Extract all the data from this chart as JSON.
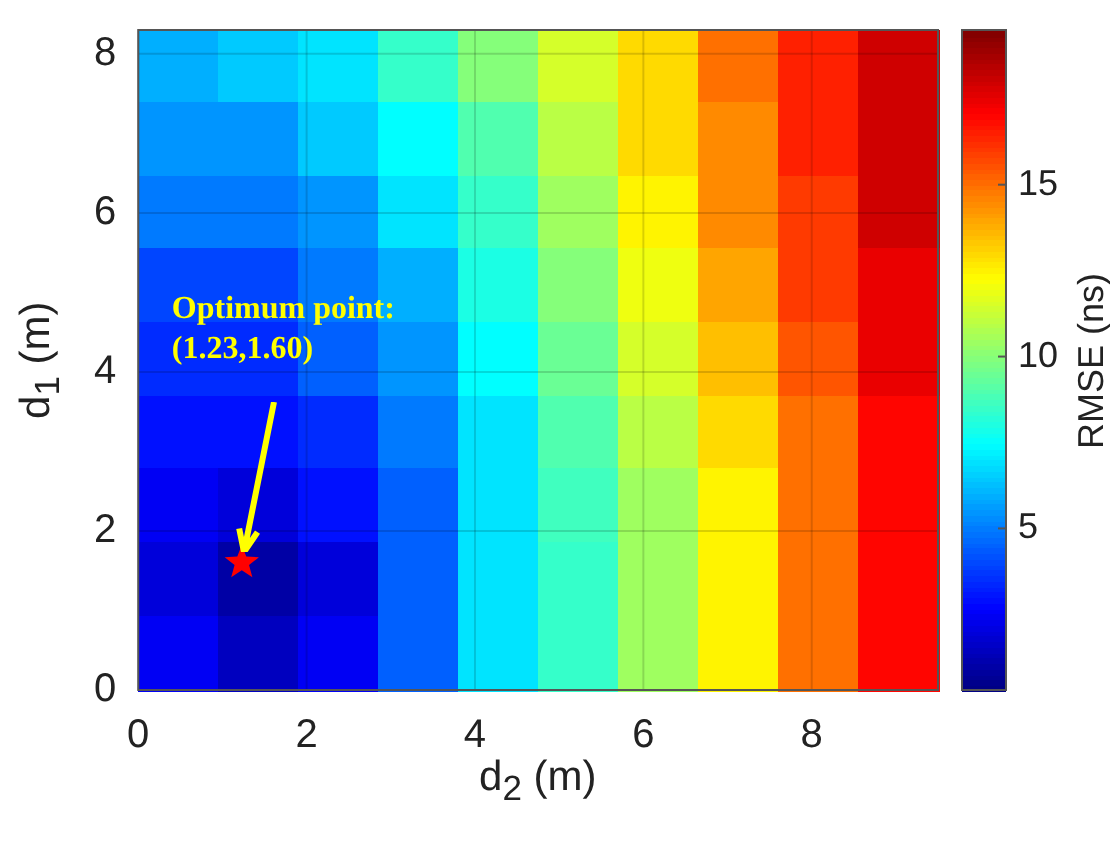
{
  "chart_data": {
    "type": "heatmap",
    "xlabel": "d$_{2}$ (m)",
    "ylabel": "d$_{1}$ (m)",
    "clabel": "RMSE (ns)",
    "x": [
      0.475,
      1.425,
      2.375,
      3.325,
      4.275,
      5.225,
      6.175,
      7.125,
      8.075,
      9.025
    ],
    "y": [
      7.84,
      6.92,
      6.0,
      5.07,
      4.15,
      3.23,
      2.31,
      1.38,
      0.46
    ],
    "cells": [
      [
        6,
        6.5,
        7,
        8.5,
        10,
        11.5,
        13,
        15,
        16.5,
        18
      ],
      [
        5.5,
        5.5,
        6.5,
        7.5,
        9,
        11,
        13,
        14.5,
        16.5,
        18
      ],
      [
        5,
        5,
        5.5,
        7,
        8.5,
        10.5,
        12.5,
        14.5,
        16,
        18
      ],
      [
        4,
        4,
        5,
        6,
        8,
        10,
        12,
        14,
        16,
        17.5
      ],
      [
        3.5,
        3.5,
        4.5,
        5.5,
        7.5,
        9.5,
        11.5,
        13.5,
        15.5,
        17.5
      ],
      [
        3,
        3,
        3.5,
        5,
        7,
        9,
        11,
        13,
        15,
        17
      ],
      [
        2.5,
        2,
        3,
        4.5,
        7,
        8.7,
        10.5,
        12.5,
        15,
        17
      ],
      [
        2,
        1,
        2,
        4.5,
        7,
        8.5,
        10.5,
        12.5,
        15,
        17
      ],
      [
        2.5,
        1.5,
        2.5,
        4.5,
        7,
        8.5,
        10.5,
        12.5,
        15,
        17
      ]
    ],
    "xlim": [
      0,
      9.5
    ],
    "ylim": [
      0,
      8.3
    ],
    "xticks": [
      0,
      2,
      4,
      6,
      8
    ],
    "yticks": [
      0,
      2,
      4,
      6,
      8
    ],
    "clim": [
      0.3,
      19.5
    ],
    "cticks": [
      5,
      10,
      15
    ],
    "grid": true,
    "series": [
      {
        "type": "scatter",
        "color": "#ff0000",
        "marker": "star",
        "x": [
          1.23
        ],
        "values": [
          1.6
        ]
      }
    ],
    "annotations": [
      {
        "text": "Optimum point:\n(1.23,1.60)",
        "x": 1.23,
        "y": 1.6
      }
    ]
  }
}
